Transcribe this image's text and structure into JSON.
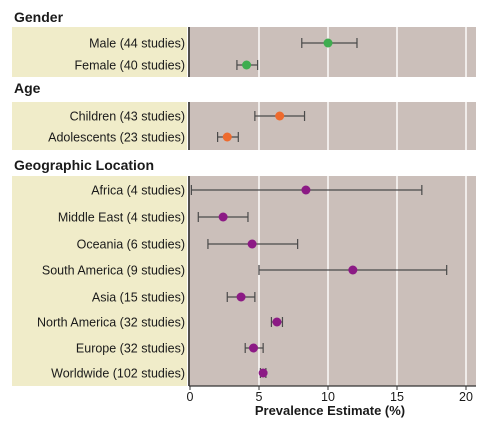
{
  "chart_data": {
    "type": "forest",
    "xlabel": "Prevalence Estimate (%)",
    "xlim": [
      0,
      20
    ],
    "xticks": [
      "0",
      "5",
      "10",
      "15",
      "20"
    ],
    "grid": true,
    "colors": {
      "plot_background": "#cbbfba",
      "label_background": "#f0ecc9",
      "gridline": "#ffffff",
      "gender": "#3ead4f",
      "age": "#ee6a2d",
      "geographic_location": "#8c1a85",
      "error_bar": "#4a4a4a"
    },
    "sections": [
      {
        "title": "Gender",
        "color_key": "gender",
        "rows": [
          {
            "label": "Male (44 studies)",
            "estimate": 10.0,
            "ci": [
              8.1,
              12.1
            ]
          },
          {
            "label": "Female (40 studies)",
            "estimate": 4.1,
            "ci": [
              3.4,
              4.9
            ]
          }
        ]
      },
      {
        "title": "Age",
        "color_key": "age",
        "rows": [
          {
            "label": "Children (43 studies)",
            "estimate": 6.5,
            "ci": [
              4.7,
              8.3
            ]
          },
          {
            "label": "Adolescents (23 studies)",
            "estimate": 2.7,
            "ci": [
              2.0,
              3.5
            ]
          }
        ]
      },
      {
        "title": "Geographic Location",
        "color_key": "geographic_location",
        "rows": [
          {
            "label": "Africa (4 studies)",
            "estimate": 8.4,
            "ci": [
              0.1,
              16.8
            ]
          },
          {
            "label": "Middle East (4 studies)",
            "estimate": 2.4,
            "ci": [
              0.6,
              4.2
            ]
          },
          {
            "label": "Oceania (6 studies)",
            "estimate": 4.5,
            "ci": [
              1.3,
              7.8
            ]
          },
          {
            "label": "South America (9 studies)",
            "estimate": 11.8,
            "ci": [
              5.0,
              18.6
            ]
          },
          {
            "label": "Asia (15 studies)",
            "estimate": 3.7,
            "ci": [
              2.7,
              4.7
            ]
          },
          {
            "label": "North America (32 studies)",
            "estimate": 6.3,
            "ci": [
              5.9,
              6.7
            ]
          },
          {
            "label": "Europe (32 studies)",
            "estimate": 4.6,
            "ci": [
              4.0,
              5.3
            ]
          },
          {
            "label": "Worldwide (102 studies)",
            "estimate": 5.3,
            "ci": [
              5.1,
              5.5
            ]
          }
        ]
      }
    ]
  }
}
